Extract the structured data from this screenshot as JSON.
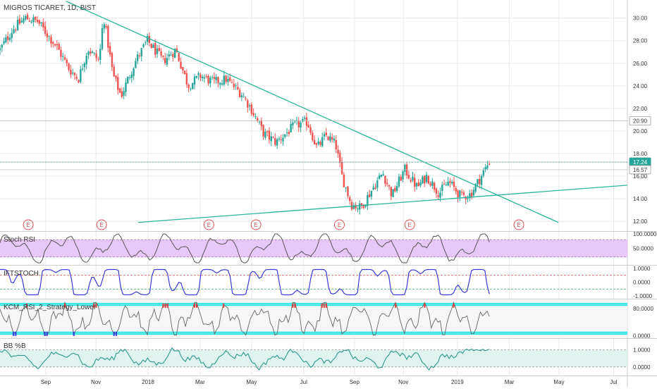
{
  "title": "MIGROS TICARET, 1D, BIST",
  "colors": {
    "up": "#26a69a",
    "down": "#ef5350",
    "trendline": "#2bb59a",
    "grid": "#e8e8e8",
    "axis_text": "#333333",
    "rsi_fill": "#e8c8f8",
    "band_blue": "#3a3ad8",
    "cyan_band": "#2ee6e6",
    "bb_fill": "#dff4ee",
    "bb_line": "#1f8f86",
    "current_badge": "#26a69a",
    "red_marks": "#e04040"
  },
  "chart_data": [
    {
      "type": "candlestick",
      "title": "MIGROS TICARET, 1D, BIST",
      "y_ticks": [
        "30.00",
        "28.00",
        "26.00",
        "24.00",
        "22.00",
        "20.00",
        "18.00",
        "16.00",
        "14.00",
        "12.00"
      ],
      "ylim": [
        11.2,
        31.6
      ],
      "price_badges": [
        {
          "label": "20.90",
          "value": 20.9,
          "style": "outline"
        },
        {
          "label": "17.25",
          "value": 17.25,
          "style": "outline"
        },
        {
          "label": "17.24",
          "value": 17.24,
          "style": "filled"
        },
        {
          "label": "16.57",
          "value": 16.57,
          "style": "outline"
        }
      ],
      "events": [
        "E",
        "E",
        "E",
        "E",
        "E",
        "E",
        "E"
      ],
      "event_x": [
        0.045,
        0.162,
        0.333,
        0.408,
        0.541,
        0.653,
        0.827
      ],
      "anchors": [
        [
          0,
          27.2
        ],
        [
          0.02,
          29.0
        ],
        [
          0.04,
          30.0
        ],
        [
          0.06,
          29.7
        ],
        [
          0.09,
          27.5
        ],
        [
          0.11,
          25.5
        ],
        [
          0.125,
          24.6
        ],
        [
          0.14,
          27.3
        ],
        [
          0.158,
          26.2
        ],
        [
          0.165,
          30.2
        ],
        [
          0.18,
          25.0
        ],
        [
          0.193,
          23.1
        ],
        [
          0.215,
          26.1
        ],
        [
          0.235,
          28.0
        ],
        [
          0.26,
          26.2
        ],
        [
          0.28,
          27.2
        ],
        [
          0.3,
          24.0
        ],
        [
          0.32,
          24.9
        ],
        [
          0.34,
          24.3
        ],
        [
          0.36,
          24.6
        ],
        [
          0.385,
          23.3
        ],
        [
          0.4,
          22.0
        ],
        [
          0.42,
          19.8
        ],
        [
          0.44,
          19.0
        ],
        [
          0.47,
          20.5
        ],
        [
          0.49,
          20.8
        ],
        [
          0.505,
          18.5
        ],
        [
          0.52,
          19.6
        ],
        [
          0.535,
          18.8
        ],
        [
          0.545,
          16.0
        ],
        [
          0.56,
          13.5
        ],
        [
          0.575,
          13.2
        ],
        [
          0.595,
          15.0
        ],
        [
          0.61,
          16.3
        ],
        [
          0.625,
          14.3
        ],
        [
          0.645,
          16.6
        ],
        [
          0.665,
          15.0
        ],
        [
          0.68,
          16.0
        ],
        [
          0.7,
          14.5
        ],
        [
          0.715,
          15.5
        ],
        [
          0.735,
          14.2
        ],
        [
          0.75,
          14.4
        ],
        [
          0.765,
          15.8
        ],
        [
          0.78,
          17.3
        ]
      ],
      "trendlines": [
        {
          "x": [
            0.105,
            0.89
          ],
          "y": [
            31.5,
            11.9
          ]
        },
        {
          "x": [
            0.22,
            1.0
          ],
          "y": [
            11.9,
            15.2
          ]
        }
      ]
    },
    {
      "type": "line",
      "title": "Stoch RSI",
      "y_ticks": [
        "100.0000",
        "50.0000"
      ],
      "ylim": [
        -5,
        105
      ],
      "levels": [
        80,
        20
      ]
    },
    {
      "type": "line",
      "title": "IFTSTOCH",
      "y_ticks": [
        "1.0000",
        "0.0000",
        "-1.0000"
      ],
      "ylim": [
        -1.15,
        1.15
      ],
      "levels": [
        0.5,
        -0.5
      ]
    },
    {
      "type": "line",
      "title": "KCM_RSI_2_Strategy_Lower",
      "y_ticks": [
        "80.0000",
        "0.0000"
      ],
      "ylim": [
        -5,
        105
      ],
      "levels": [
        95,
        90,
        10,
        5
      ]
    },
    {
      "type": "area",
      "title": "BB %B",
      "y_ticks": [
        "1.0000",
        "0.0000"
      ],
      "ylim": [
        -0.5,
        1.6
      ],
      "levels": [
        1,
        0
      ]
    }
  ],
  "time_axis": {
    "labels": [
      "Sep",
      "Nov",
      "2018",
      "Mar",
      "May",
      "Jul",
      "Sep",
      "Nov",
      "2019",
      "Mar",
      "May",
      "Jul"
    ],
    "positions": [
      0.073,
      0.153,
      0.236,
      0.319,
      0.401,
      0.484,
      0.565,
      0.643,
      0.729,
      0.812,
      0.891,
      0.978
    ]
  }
}
